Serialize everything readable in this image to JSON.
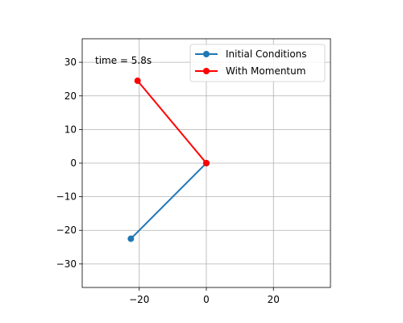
{
  "chart_data": {
    "type": "line",
    "xlim": [
      -37,
      37
    ],
    "ylim": [
      -37,
      37
    ],
    "x_ticks": [
      -20,
      0,
      20
    ],
    "y_ticks": [
      -30,
      -20,
      -10,
      0,
      10,
      20,
      30
    ],
    "grid": true,
    "legend_placement": "top-right",
    "annotation": "time = 5.8s",
    "series": [
      {
        "name": "Initial Conditions",
        "color": "#1f77b4",
        "marker": "circle",
        "x": [
          0,
          -22.5
        ],
        "y": [
          0,
          -22.5
        ]
      },
      {
        "name": "With Momentum",
        "color": "#ff0000",
        "marker": "circle",
        "x": [
          0,
          -20.5
        ],
        "y": [
          0,
          24.5
        ]
      }
    ]
  }
}
